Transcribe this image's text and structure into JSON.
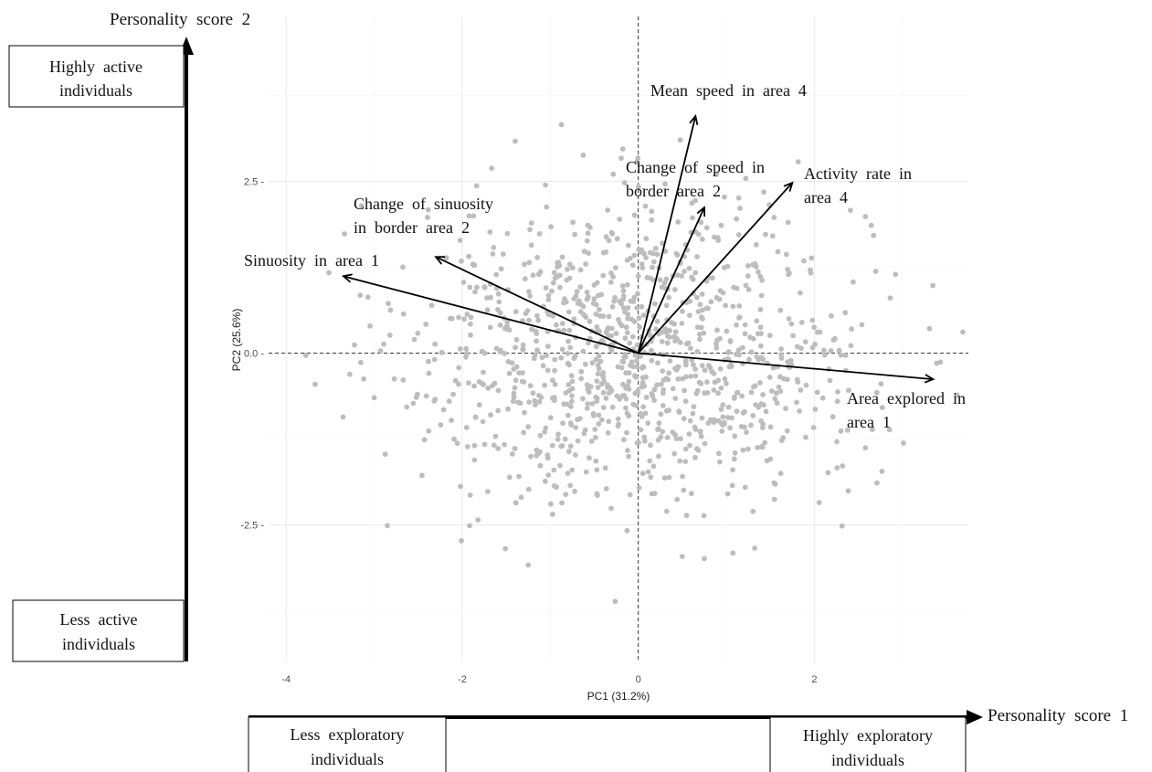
{
  "chart_data": {
    "type": "scatter",
    "xlabel": "PC1 (31.2%)",
    "ylabel": "PC2 (25.6%)",
    "xlim": [
      -4.2,
      3.75
    ],
    "ylim": [
      -4.5,
      4.9
    ],
    "x_ticks": [
      -4,
      -2,
      0,
      2
    ],
    "x_tick_labels": [
      "-4",
      "-2",
      "0",
      "2"
    ],
    "y_ticks": [
      -2.5,
      0,
      2.5
    ],
    "y_tick_labels": [
      "-2.5",
      "0.0",
      "2.5"
    ],
    "grid": true,
    "point_color": "#bdbdbd",
    "n_points": 1100,
    "point_spread_sd": [
      1.3,
      1.1
    ],
    "loadings": [
      {
        "name": "Sinuosity  in  area  1",
        "x": -3.35,
        "y": 1.12
      },
      {
        "name": "Change  of  sinuosity\nin  border  area  2",
        "x": -2.3,
        "y": 1.4
      },
      {
        "name": "Mean  speed  in  area  4",
        "x": 0.65,
        "y": 3.45
      },
      {
        "name": "Change  of  speed  in\nborder  area  2",
        "x": 0.75,
        "y": 2.12
      },
      {
        "name": "Activity  rate  in\narea  4",
        "x": 1.75,
        "y": 2.48
      },
      {
        "name": "Area  explored  in\narea  1",
        "x": 3.35,
        "y": -0.38
      }
    ]
  },
  "annotations": {
    "y_score_label": "Personality  score  2",
    "x_score_label": "Personality  score  1",
    "top_box": [
      "Highly  active",
      "individuals"
    ],
    "bottom_box": [
      "Less  active",
      "individuals"
    ],
    "left_box": [
      "Less  exploratory",
      "individuals"
    ],
    "right_box": [
      "Highly  exploratory",
      "individuals"
    ]
  }
}
